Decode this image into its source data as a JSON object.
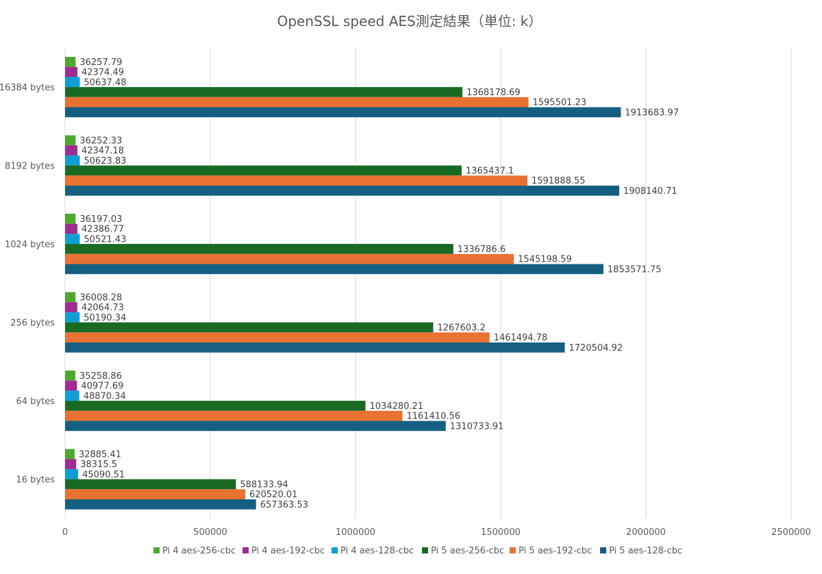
{
  "chart_data": {
    "type": "bar",
    "orientation": "horizontal",
    "title": "OpenSSL speed AES測定結果（単位: k）",
    "xlabel": "",
    "ylabel": "",
    "xlim": [
      0,
      2500000
    ],
    "xticks": [
      0,
      500000,
      1000000,
      1500000,
      2000000,
      2500000
    ],
    "xtick_labels": [
      "0",
      "500000",
      "1000000",
      "1500000",
      "2000000",
      "2500000"
    ],
    "grid": "vertical major gridlines",
    "legend_position": "bottom",
    "categories_top_to_bottom": [
      "16384 bytes",
      "8192 bytes",
      "1024 bytes",
      "256 bytes",
      "64 bytes",
      "16 bytes"
    ],
    "series": [
      {
        "name": "Pi 4 aes-256-cbc",
        "color": "#4ea72e",
        "values": [
          36257.79,
          36252.33,
          36197.03,
          36008.28,
          35258.86,
          32885.41
        ],
        "labels": [
          "36257.79",
          "36252.33",
          "36197.03",
          "36008.28",
          "35258.86",
          "32885.41"
        ]
      },
      {
        "name": "Pi 4 aes-192-cbc",
        "color": "#a02b93",
        "values": [
          42374.49,
          42347.18,
          42386.77,
          42064.73,
          40977.69,
          38315.5
        ],
        "labels": [
          "42374.49",
          "42347.18",
          "42386.77",
          "42064.73",
          "40977.69",
          "38315.5"
        ]
      },
      {
        "name": "Pi 4 aes-128-cbc",
        "color": "#0f9ed5",
        "values": [
          50637.48,
          50623.83,
          50521.43,
          50190.34,
          48870.34,
          45090.51
        ],
        "labels": [
          "50637.48",
          "50623.83",
          "50521.43",
          "50190.34",
          "48870.34",
          "45090.51"
        ]
      },
      {
        "name": "Pi 5 aes-256-cbc",
        "color": "#196b24",
        "values": [
          1368178.69,
          1365437.1,
          1336786.6,
          1267603.2,
          1034280.21,
          588133.94
        ],
        "labels": [
          "1368178.69",
          "1365437.1",
          "1336786.6",
          "1267603.2",
          "1034280.21",
          "588133.94"
        ]
      },
      {
        "name": "Pi 5 aes-192-cbc",
        "color": "#e97132",
        "values": [
          1595501.23,
          1591888.55,
          1545198.59,
          1461494.78,
          1161410.56,
          620520.01
        ],
        "labels": [
          "1595501.23",
          "1591888.55",
          "1545198.59",
          "1461494.78",
          "1161410.56",
          "620520.01"
        ]
      },
      {
        "name": "Pi 5 aes-128-cbc",
        "color": "#156082",
        "values": [
          1913683.97,
          1908140.71,
          1853571.75,
          1720504.92,
          1310733.91,
          657363.53
        ],
        "labels": [
          "1913683.97",
          "1908140.71",
          "1853571.75",
          "1720504.92",
          "1310733.91",
          "657363.53"
        ]
      }
    ]
  }
}
